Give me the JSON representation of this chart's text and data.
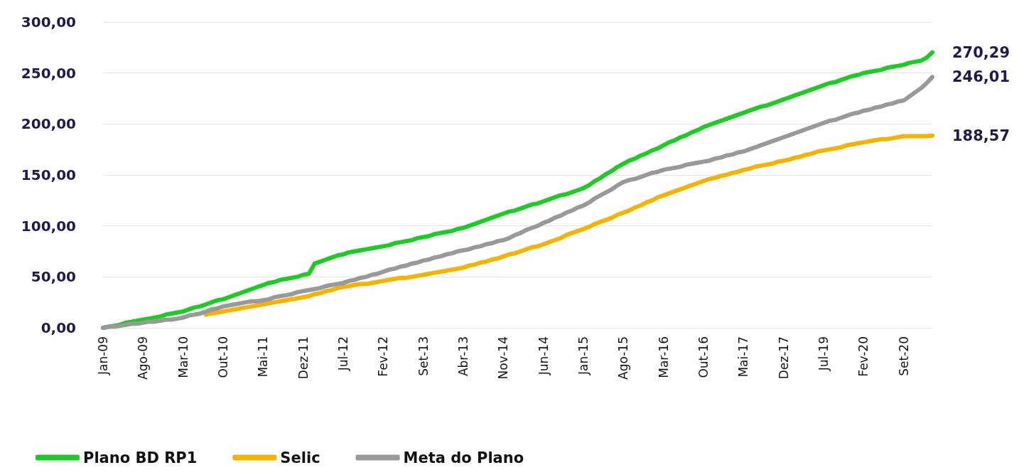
{
  "chart_data": {
    "type": "line",
    "categories": [
      "Jan-09",
      null,
      null,
      null,
      null,
      null,
      null,
      "Ago-09",
      null,
      null,
      null,
      null,
      null,
      null,
      "Mar-10",
      null,
      null,
      null,
      null,
      null,
      null,
      "Out-10",
      null,
      null,
      null,
      null,
      null,
      null,
      "Mai-11",
      null,
      null,
      null,
      null,
      null,
      null,
      "Dez-11",
      null,
      null,
      null,
      null,
      null,
      null,
      "Jul-12",
      null,
      null,
      null,
      null,
      null,
      null,
      "Fev-12",
      null,
      null,
      null,
      null,
      null,
      null,
      "Set-13",
      null,
      null,
      null,
      null,
      null,
      null,
      "Abr-13",
      null,
      null,
      null,
      null,
      null,
      null,
      "Nov-14",
      null,
      null,
      null,
      null,
      null,
      null,
      "Jun-14",
      null,
      null,
      null,
      null,
      null,
      null,
      "Jan-15",
      null,
      null,
      null,
      null,
      null,
      null,
      "Ago-15",
      null,
      null,
      null,
      null,
      null,
      null,
      "Mar-16",
      null,
      null,
      null,
      null,
      null,
      null,
      "Out-16",
      null,
      null,
      null,
      null,
      null,
      null,
      "Mai-17",
      null,
      null,
      null,
      null,
      null,
      null,
      "Dez-17",
      null,
      null,
      null,
      null,
      null,
      null,
      "Jul-19",
      null,
      null,
      null,
      null,
      null,
      null,
      "Fev-20",
      null,
      null,
      null,
      null,
      null,
      null,
      "Set-20",
      null,
      null,
      null,
      null,
      null
    ],
    "series": [
      {
        "name": "Plano BD RP1",
        "color": "#1ecb26",
        "values": [
          0,
          1,
          2,
          3,
          5,
          6,
          7,
          8,
          9,
          10,
          11,
          13,
          14,
          15,
          16,
          18,
          20,
          21,
          23,
          25,
          27,
          28,
          30,
          32,
          34,
          36,
          38,
          40,
          42,
          44,
          45,
          47,
          48,
          49,
          50,
          52,
          53,
          63,
          65,
          67,
          69,
          71,
          72,
          74,
          75,
          76,
          77,
          78,
          79,
          80,
          81,
          83,
          84,
          85,
          86,
          88,
          89,
          90,
          92,
          93,
          94,
          95,
          97,
          98,
          100,
          102,
          104,
          106,
          108,
          110,
          112,
          114,
          115,
          117,
          119,
          121,
          122,
          124,
          126,
          128,
          130,
          131,
          133,
          135,
          137,
          140,
          144,
          147,
          151,
          154,
          158,
          161,
          164,
          166,
          169,
          171,
          174,
          176,
          179,
          182,
          184,
          187,
          189,
          192,
          194,
          197,
          199,
          201,
          203,
          205,
          207,
          209,
          211,
          213,
          215,
          217,
          218,
          220,
          222,
          224,
          226,
          228,
          230,
          232,
          234,
          236,
          238,
          240,
          241,
          243,
          245,
          247,
          248,
          250,
          251,
          252,
          253,
          255,
          256,
          257,
          258,
          260,
          261,
          262,
          265,
          270.29
        ],
        "value_labels": [
          null,
          null,
          null,
          null,
          null,
          null,
          null,
          null,
          null,
          null,
          null,
          null,
          null,
          null,
          null,
          null,
          null,
          null,
          null,
          null,
          null,
          null,
          null,
          null,
          null,
          null,
          null,
          null,
          null,
          null,
          null,
          null,
          null,
          null,
          null,
          null,
          null,
          null,
          null,
          null,
          null,
          null,
          null,
          null,
          null,
          null,
          null,
          null,
          null,
          null,
          null,
          null,
          null,
          null,
          null,
          null,
          null,
          null,
          null,
          null,
          null,
          null,
          null,
          null,
          null,
          null,
          null,
          null,
          null,
          null,
          null,
          null,
          null,
          null,
          null,
          null,
          null,
          null,
          null,
          null,
          null,
          null,
          null,
          null,
          null,
          null,
          null,
          null,
          null,
          null,
          null,
          null,
          null,
          null,
          null,
          null,
          null,
          null,
          null,
          null,
          null,
          null,
          null,
          null,
          null,
          null,
          null,
          null,
          null,
          null,
          null,
          null,
          null,
          null,
          null,
          null,
          null,
          null,
          null,
          null,
          null,
          null,
          null,
          null,
          null,
          null,
          null,
          null,
          null,
          null,
          null,
          null,
          null,
          null,
          null,
          null,
          null,
          null,
          null,
          null,
          null,
          null,
          null,
          null,
          null,
          "270,29"
        ]
      },
      {
        "name": "Selic",
        "color": "#f5b300",
        "values": [
          null,
          null,
          null,
          null,
          null,
          null,
          null,
          null,
          null,
          null,
          null,
          null,
          null,
          null,
          null,
          null,
          null,
          null,
          13,
          14,
          15,
          16,
          17,
          18,
          19,
          20,
          21,
          22,
          23,
          24,
          25,
          26,
          27,
          28,
          29,
          30,
          31,
          33,
          34,
          36,
          37,
          39,
          40,
          41,
          42,
          43,
          43,
          44,
          45,
          46,
          47,
          48,
          49,
          49,
          50,
          51,
          52,
          53,
          54,
          55,
          56,
          57,
          58,
          59,
          61,
          62,
          64,
          65,
          67,
          68,
          70,
          72,
          73,
          75,
          77,
          79,
          80,
          82,
          84,
          86,
          88,
          91,
          93,
          95,
          97,
          99,
          102,
          104,
          106,
          108,
          111,
          113,
          115,
          118,
          120,
          123,
          125,
          128,
          130,
          132,
          134,
          136,
          138,
          140,
          142,
          144,
          146,
          147,
          149,
          150,
          152,
          153,
          155,
          156,
          158,
          159,
          160,
          161,
          163,
          164,
          165,
          167,
          168,
          170,
          171,
          173,
          174,
          175,
          176,
          177,
          179,
          180,
          181,
          182,
          183,
          184,
          185,
          185,
          186,
          187,
          188,
          188,
          188,
          188,
          188,
          188.57
        ],
        "value_labels": [
          null,
          null,
          null,
          null,
          null,
          null,
          null,
          null,
          null,
          null,
          null,
          null,
          null,
          null,
          null,
          null,
          null,
          null,
          null,
          null,
          null,
          null,
          null,
          null,
          null,
          null,
          null,
          null,
          null,
          null,
          null,
          null,
          null,
          null,
          null,
          null,
          null,
          null,
          null,
          null,
          null,
          null,
          null,
          null,
          null,
          null,
          null,
          null,
          null,
          null,
          null,
          null,
          null,
          null,
          null,
          null,
          null,
          null,
          null,
          null,
          null,
          null,
          null,
          null,
          null,
          null,
          null,
          null,
          null,
          null,
          null,
          null,
          null,
          null,
          null,
          null,
          null,
          null,
          null,
          null,
          null,
          null,
          null,
          null,
          null,
          null,
          null,
          null,
          null,
          null,
          null,
          null,
          null,
          null,
          null,
          null,
          null,
          null,
          null,
          null,
          null,
          null,
          null,
          null,
          null,
          null,
          null,
          null,
          null,
          null,
          null,
          null,
          null,
          null,
          null,
          null,
          null,
          null,
          null,
          null,
          null,
          null,
          null,
          null,
          null,
          null,
          null,
          null,
          null,
          null,
          null,
          null,
          null,
          null,
          null,
          null,
          null,
          null,
          null,
          null,
          null,
          null,
          null,
          null,
          null,
          "188,57"
        ]
      },
      {
        "name": "Meta do Plano",
        "color": "#999999",
        "values": [
          0,
          1,
          1,
          2,
          3,
          4,
          4,
          5,
          6,
          6,
          7,
          8,
          8,
          9,
          10,
          12,
          13,
          14,
          16,
          18,
          19,
          21,
          22,
          23,
          24,
          25,
          26,
          26,
          27,
          28,
          30,
          31,
          32,
          33,
          35,
          36,
          37,
          38,
          39,
          41,
          42,
          43,
          44,
          46,
          47,
          49,
          50,
          52,
          53,
          55,
          57,
          58,
          60,
          61,
          63,
          64,
          66,
          67,
          69,
          70,
          72,
          73,
          75,
          76,
          77,
          79,
          80,
          82,
          83,
          85,
          86,
          88,
          91,
          93,
          96,
          98,
          100,
          103,
          105,
          108,
          110,
          113,
          115,
          118,
          120,
          123,
          127,
          130,
          133,
          136,
          140,
          143,
          145,
          146,
          148,
          150,
          152,
          153,
          155,
          156,
          157,
          158,
          160,
          161,
          162,
          163,
          164,
          166,
          167,
          169,
          170,
          172,
          173,
          175,
          177,
          179,
          181,
          183,
          185,
          187,
          189,
          191,
          193,
          195,
          197,
          199,
          201,
          203,
          204,
          206,
          208,
          210,
          211,
          213,
          214,
          216,
          217,
          219,
          220,
          222,
          223,
          227,
          231,
          235,
          240,
          246.01
        ],
        "value_labels": [
          null,
          null,
          null,
          null,
          null,
          null,
          null,
          null,
          null,
          null,
          null,
          null,
          null,
          null,
          null,
          null,
          null,
          null,
          null,
          null,
          null,
          null,
          null,
          null,
          null,
          null,
          null,
          null,
          null,
          null,
          null,
          null,
          null,
          null,
          null,
          null,
          null,
          null,
          null,
          null,
          null,
          null,
          null,
          null,
          null,
          null,
          null,
          null,
          null,
          null,
          null,
          null,
          null,
          null,
          null,
          null,
          null,
          null,
          null,
          null,
          null,
          null,
          null,
          null,
          null,
          null,
          null,
          null,
          null,
          null,
          null,
          null,
          null,
          null,
          null,
          null,
          null,
          null,
          null,
          null,
          null,
          null,
          null,
          null,
          null,
          null,
          null,
          null,
          null,
          null,
          null,
          null,
          null,
          null,
          null,
          null,
          null,
          null,
          null,
          null,
          null,
          null,
          null,
          null,
          null,
          null,
          null,
          null,
          null,
          null,
          null,
          null,
          null,
          null,
          null,
          null,
          null,
          null,
          null,
          null,
          null,
          null,
          null,
          null,
          null,
          null,
          null,
          null,
          null,
          null,
          null,
          null,
          null,
          null,
          null,
          null,
          null,
          null,
          null,
          null,
          null,
          null,
          null,
          null,
          null,
          "246,01"
        ]
      }
    ],
    "ylim": [
      0,
      300
    ],
    "yticks": [
      {
        "value": 0,
        "label": "0,00"
      },
      {
        "value": 50,
        "label": "50,00"
      },
      {
        "value": 100,
        "label": "100,00"
      },
      {
        "value": 150,
        "label": "150,00"
      },
      {
        "value": 200,
        "label": "200,00"
      },
      {
        "value": 250,
        "label": "250,00"
      },
      {
        "value": 300,
        "label": "300,00"
      }
    ],
    "grid": "y",
    "legend": "bottom left",
    "marker": "none",
    "line_style": "solid"
  }
}
